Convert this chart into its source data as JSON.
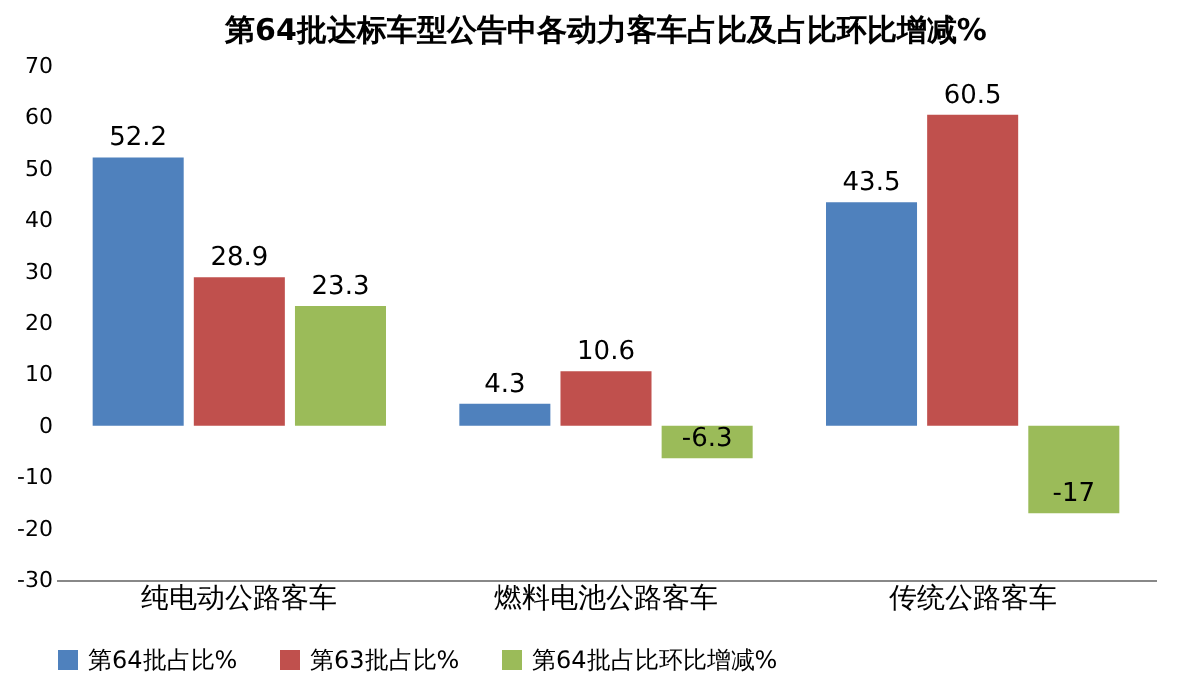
{
  "chart_data": {
    "type": "bar",
    "title": "第64批达标车型公告中各动力客车占比及占比环比增减%",
    "categories": [
      "纯电动公路客车",
      "燃料电池公路客车",
      "传统公路客车"
    ],
    "series": [
      {
        "name": "第64批占比%",
        "color": "#4f81bd",
        "values": [
          52.2,
          4.3,
          43.5
        ]
      },
      {
        "name": "第63批占比%",
        "color": "#c0504d",
        "values": [
          28.9,
          10.6,
          60.5
        ]
      },
      {
        "name": "第64批占比环比增减%",
        "color": "#9bbb59",
        "values": [
          23.3,
          -6.3,
          -17
        ]
      }
    ],
    "ylim": [
      -30,
      70
    ],
    "yticks": [
      -30,
      -20,
      -10,
      0,
      10,
      20,
      30,
      40,
      50,
      60,
      70
    ],
    "data_labels": true,
    "legend": "bottom",
    "grid": false
  }
}
